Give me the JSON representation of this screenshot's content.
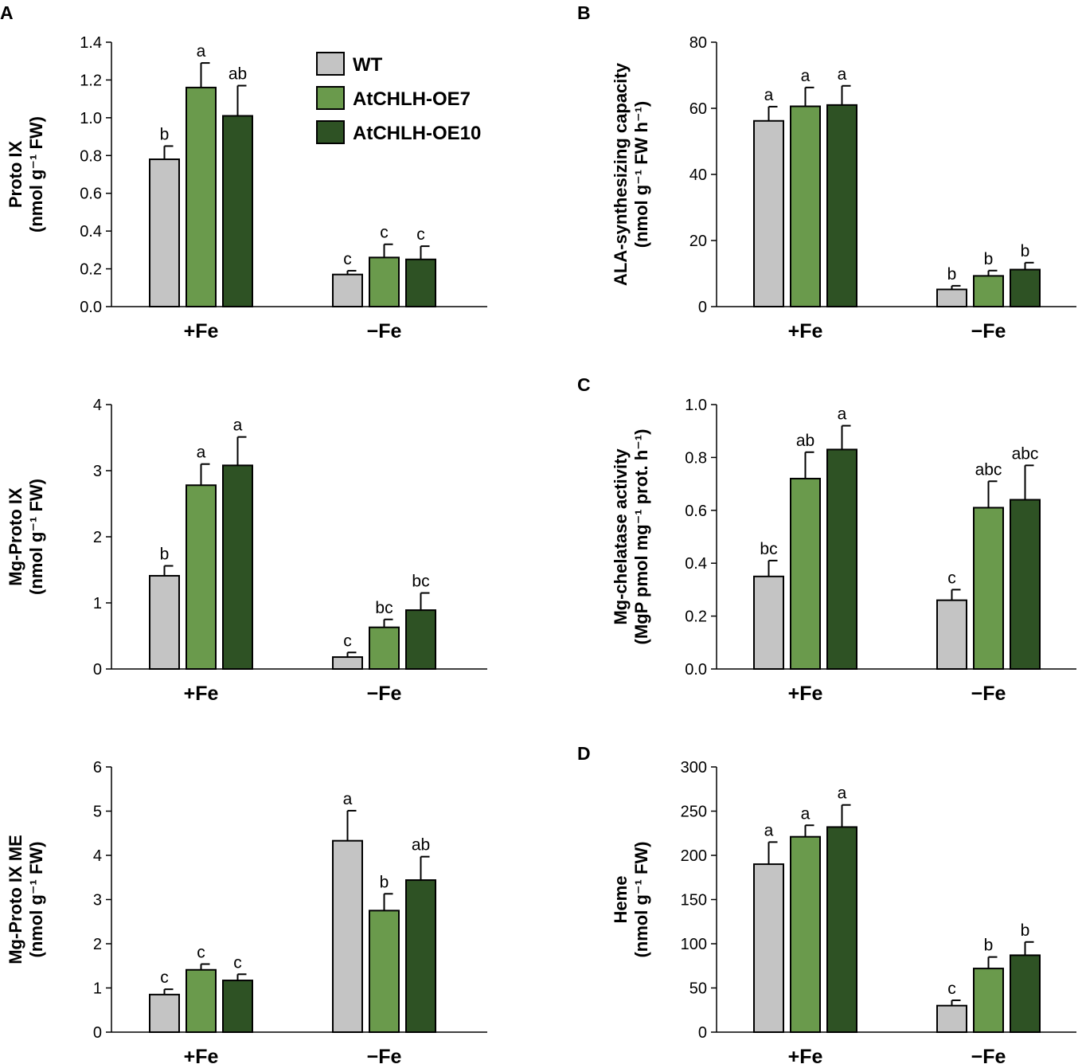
{
  "colors": {
    "WT": "#c4c4c4",
    "AtCHLH-OE7": "#6a9a4c",
    "AtCHLH-OE10": "#2e5224",
    "axis": "#000000"
  },
  "legend": {
    "entries": [
      "WT",
      "AtCHLH-OE7",
      "AtCHLH-OE10"
    ]
  },
  "chart_data": [
    {
      "type": "bar",
      "panel": "A",
      "title": "",
      "ylabel_lines": [
        "Proto IX",
        "(nmol g⁻¹ FW)"
      ],
      "categories": [
        "+Fe",
        "−Fe"
      ],
      "ylim": [
        0,
        1.4
      ],
      "yticks": [
        "0.0",
        "0.2",
        "0.4",
        "0.6",
        "0.8",
        "1.0",
        "1.2",
        "1.4"
      ],
      "series": [
        {
          "name": "WT",
          "values": [
            0.78,
            0.17
          ],
          "errors": [
            0.07,
            0.02
          ],
          "letters": [
            "b",
            "c"
          ]
        },
        {
          "name": "AtCHLH-OE7",
          "values": [
            1.16,
            0.26
          ],
          "errors": [
            0.13,
            0.07
          ],
          "letters": [
            "a",
            "c"
          ]
        },
        {
          "name": "AtCHLH-OE10",
          "values": [
            1.01,
            0.25
          ],
          "errors": [
            0.16,
            0.07
          ],
          "letters": [
            "ab",
            "c"
          ]
        }
      ]
    },
    {
      "type": "bar",
      "panel": "",
      "title": "",
      "ylabel_lines": [
        "Mg-Proto IX",
        "(nmol g⁻¹ FW)"
      ],
      "categories": [
        "+Fe",
        "−Fe"
      ],
      "ylim": [
        0,
        4
      ],
      "yticks": [
        "0",
        "1",
        "2",
        "3",
        "4"
      ],
      "series": [
        {
          "name": "WT",
          "values": [
            1.41,
            0.18
          ],
          "errors": [
            0.15,
            0.07
          ],
          "letters": [
            "b",
            "c"
          ]
        },
        {
          "name": "AtCHLH-OE7",
          "values": [
            2.78,
            0.63
          ],
          "errors": [
            0.32,
            0.12
          ],
          "letters": [
            "a",
            "bc"
          ]
        },
        {
          "name": "AtCHLH-OE10",
          "values": [
            3.08,
            0.89
          ],
          "errors": [
            0.43,
            0.26
          ],
          "letters": [
            "a",
            "bc"
          ]
        }
      ]
    },
    {
      "type": "bar",
      "panel": "",
      "title": "",
      "ylabel_lines": [
        "Mg-Proto IX ME",
        "(nmol g⁻¹ FW)"
      ],
      "categories": [
        "+Fe",
        "−Fe"
      ],
      "ylim": [
        0,
        6
      ],
      "yticks": [
        "0",
        "1",
        "2",
        "3",
        "4",
        "5",
        "6"
      ],
      "series": [
        {
          "name": "WT",
          "values": [
            0.85,
            4.33
          ],
          "errors": [
            0.12,
            0.68
          ],
          "letters": [
            "c",
            "a"
          ]
        },
        {
          "name": "AtCHLH-OE7",
          "values": [
            1.41,
            2.75
          ],
          "errors": [
            0.13,
            0.38
          ],
          "letters": [
            "c",
            "b"
          ]
        },
        {
          "name": "AtCHLH-OE10",
          "values": [
            1.17,
            3.44
          ],
          "errors": [
            0.14,
            0.53
          ],
          "letters": [
            "c",
            "ab"
          ]
        }
      ]
    },
    {
      "type": "bar",
      "panel": "B",
      "title": "",
      "ylabel_lines": [
        "ALA-synthesizing capacity",
        "(nmol g⁻¹ FW h⁻¹)"
      ],
      "categories": [
        "+Fe",
        "−Fe"
      ],
      "ylim": [
        0,
        80
      ],
      "yticks": [
        "0",
        "20",
        "40",
        "60",
        "80"
      ],
      "series": [
        {
          "name": "WT",
          "values": [
            56.2,
            5.2
          ],
          "errors": [
            4.3,
            1.1
          ],
          "letters": [
            "a",
            "b"
          ]
        },
        {
          "name": "AtCHLH-OE7",
          "values": [
            60.6,
            9.3
          ],
          "errors": [
            5.7,
            1.6
          ],
          "letters": [
            "a",
            "b"
          ]
        },
        {
          "name": "AtCHLH-OE10",
          "values": [
            61.0,
            11.2
          ],
          "errors": [
            5.8,
            2.1
          ],
          "letters": [
            "a",
            "b"
          ]
        }
      ]
    },
    {
      "type": "bar",
      "panel": "C",
      "title": "",
      "ylabel_lines": [
        "Mg-chelatase activity",
        "(MgP pmol mg⁻¹ prot. h⁻¹)"
      ],
      "categories": [
        "+Fe",
        "−Fe"
      ],
      "ylim": [
        0,
        1.0
      ],
      "yticks": [
        "0.0",
        "0.2",
        "0.4",
        "0.6",
        "0.8",
        "1.0"
      ],
      "series": [
        {
          "name": "WT",
          "values": [
            0.35,
            0.26
          ],
          "errors": [
            0.06,
            0.04
          ],
          "letters": [
            "bc",
            "c"
          ]
        },
        {
          "name": "AtCHLH-OE7",
          "values": [
            0.72,
            0.61
          ],
          "errors": [
            0.1,
            0.1
          ],
          "letters": [
            "ab",
            "abc"
          ]
        },
        {
          "name": "AtCHLH-OE10",
          "values": [
            0.83,
            0.64
          ],
          "errors": [
            0.09,
            0.13
          ],
          "letters": [
            "a",
            "abc"
          ]
        }
      ]
    },
    {
      "type": "bar",
      "panel": "D",
      "title": "",
      "ylabel_lines": [
        "Heme",
        "(nmol g⁻¹ FW)"
      ],
      "categories": [
        "+Fe",
        "−Fe"
      ],
      "ylim": [
        0,
        300
      ],
      "yticks": [
        "0",
        "50",
        "100",
        "150",
        "200",
        "250",
        "300"
      ],
      "series": [
        {
          "name": "WT",
          "values": [
            190,
            30
          ],
          "errors": [
            25,
            6
          ],
          "letters": [
            "a",
            "c"
          ]
        },
        {
          "name": "AtCHLH-OE7",
          "values": [
            221,
            72
          ],
          "errors": [
            13,
            13
          ],
          "letters": [
            "a",
            "b"
          ]
        },
        {
          "name": "AtCHLH-OE10",
          "values": [
            232,
            87
          ],
          "errors": [
            25,
            15
          ],
          "letters": [
            "a",
            "b"
          ]
        }
      ]
    }
  ]
}
